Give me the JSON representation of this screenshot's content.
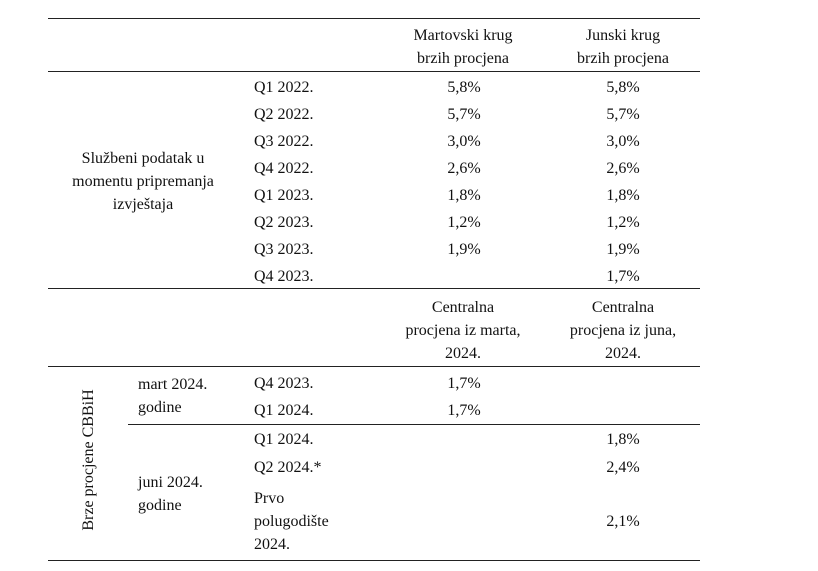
{
  "header": {
    "col_march": "Martovski krug\nbrzih procjena",
    "col_june": "Junski krug\nbrzih procjena"
  },
  "official": {
    "label": "Službeni podatak u\nmomentu pripremanja\nizvještaja",
    "rows": [
      {
        "period": "Q1 2022.",
        "march": "5,8%",
        "june": "5,8%"
      },
      {
        "period": "Q2 2022.",
        "march": "5,7%",
        "june": "5,7%"
      },
      {
        "period": "Q3 2022.",
        "march": "3,0%",
        "june": "3,0%"
      },
      {
        "period": "Q4 2022.",
        "march": "2,6%",
        "june": "2,6%"
      },
      {
        "period": "Q1 2023.",
        "march": "1,8%",
        "june": "1,8%"
      },
      {
        "period": "Q2 2023.",
        "march": "1,2%",
        "june": "1,2%"
      },
      {
        "period": "Q3 2023.",
        "march": "1,9%",
        "june": "1,9%"
      },
      {
        "period": "Q4 2023.",
        "march": "",
        "june": "1,7%"
      }
    ]
  },
  "header2": {
    "col_march": "Centralna\nprocjena iz marta,\n2024.",
    "col_june": "Centralna\nprocjena iz juna,\n2024."
  },
  "flash": {
    "label": "Brze procjene CBBiH",
    "march_group": {
      "label": "mart 2024.\ngodine",
      "rows": [
        {
          "period": "Q4 2023.",
          "march": "1,7%",
          "june": ""
        },
        {
          "period": "Q1 2024.",
          "march": "1,7%",
          "june": ""
        }
      ]
    },
    "june_group": {
      "label": "juni 2024.\ngodine",
      "rows": [
        {
          "period": "Q1 2024.",
          "march": "",
          "june": "1,8%"
        },
        {
          "period": "Q2 2024.*",
          "march": "",
          "june": "2,4%"
        },
        {
          "period": "Prvo\npolugodište\n2024.",
          "march": "",
          "june": "2,1%"
        }
      ]
    }
  }
}
